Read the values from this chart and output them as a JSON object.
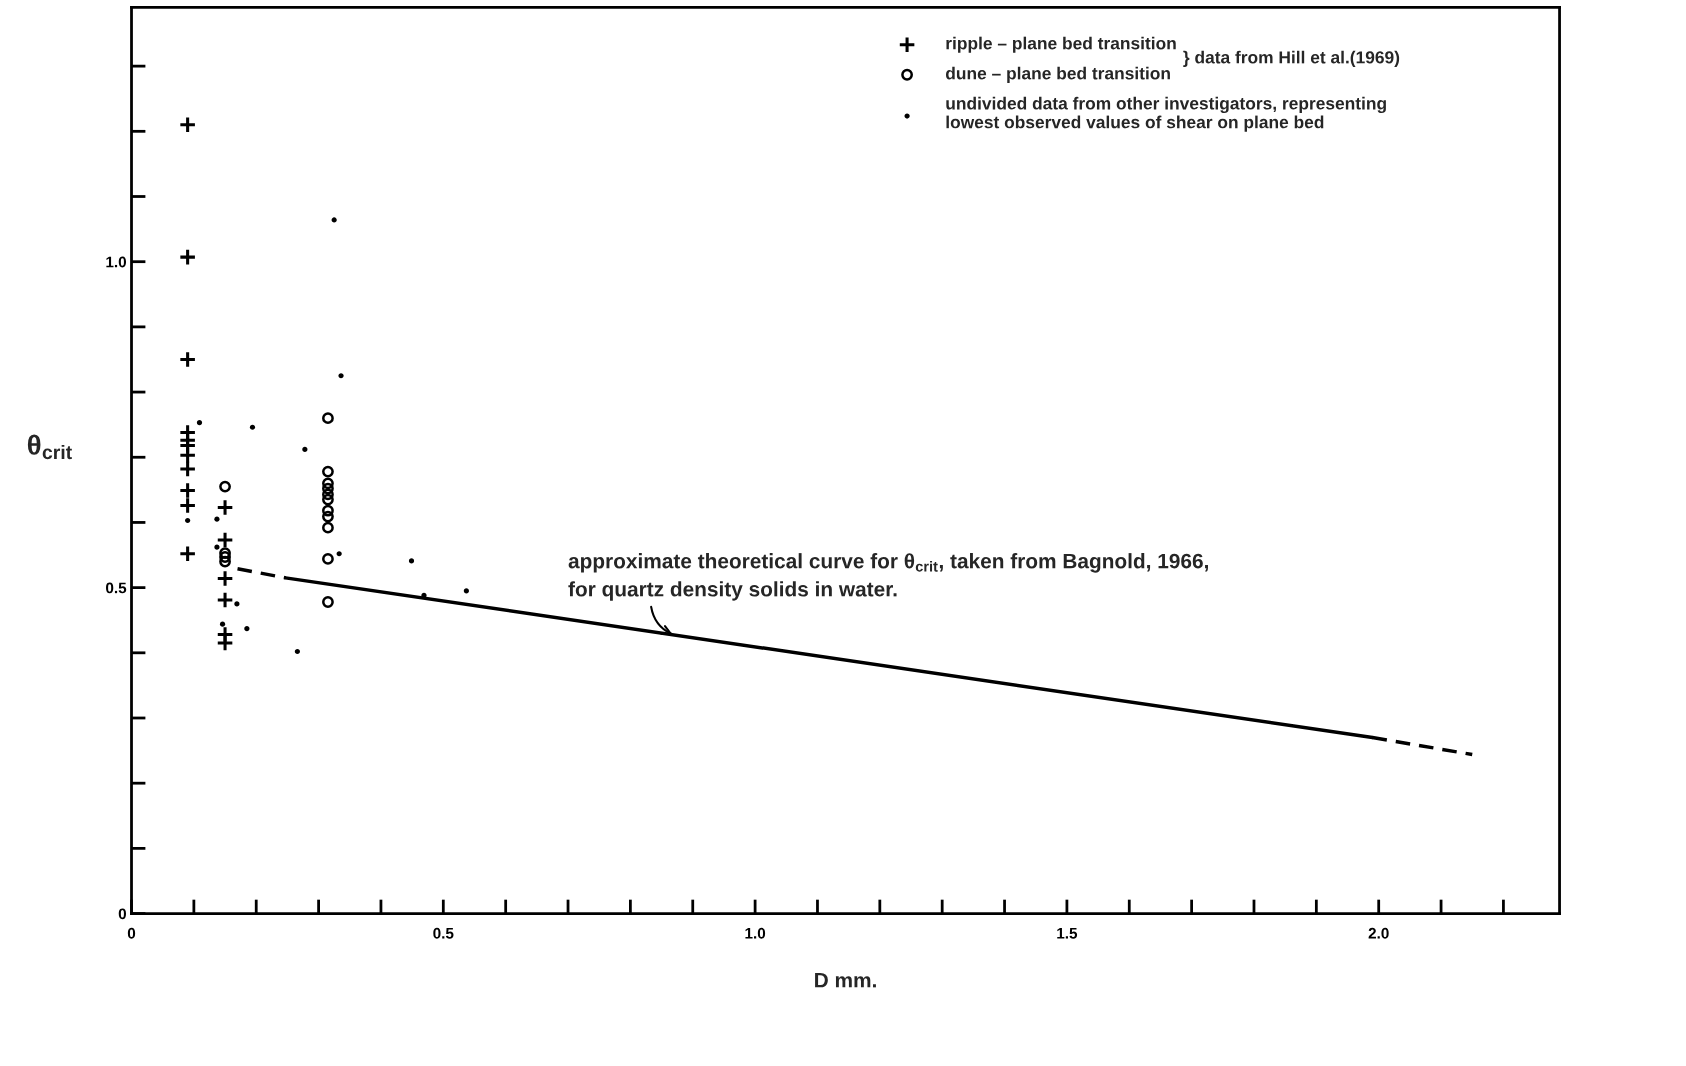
{
  "chart_data": {
    "type": "scatter",
    "xlabel": "D mm.",
    "ylabel": "θ$_{crit}$",
    "xlim": [
      0,
      2.29
    ],
    "ylim": [
      0,
      1.39
    ],
    "xticks": [
      0,
      {
        "value": 0.1,
        "label": null
      },
      {
        "value": 0.2,
        "label": null
      },
      {
        "value": 0.3,
        "label": null
      },
      {
        "value": 0.4,
        "label": null
      },
      0.5,
      {
        "value": 0.6,
        "label": null
      },
      {
        "value": 0.7,
        "label": null
      },
      {
        "value": 0.8,
        "label": null
      },
      {
        "value": 0.9,
        "label": null
      },
      {
        "value": 1.0,
        "label": "1.0"
      },
      {
        "value": 1.1,
        "label": null
      },
      {
        "value": 1.2,
        "label": null
      },
      {
        "value": 1.3,
        "label": null
      },
      {
        "value": 1.4,
        "label": null
      },
      1.5,
      {
        "value": 1.6,
        "label": null
      },
      {
        "value": 1.7,
        "label": null
      },
      {
        "value": 1.8,
        "label": null
      },
      {
        "value": 1.9,
        "label": null
      },
      {
        "value": 2.0,
        "label": "2.0"
      },
      {
        "value": 2.1,
        "label": null
      },
      {
        "value": 2.2,
        "label": null
      }
    ],
    "yticks": [
      0,
      {
        "value": 0.1,
        "label": null
      },
      {
        "value": 0.2,
        "label": null
      },
      {
        "value": 0.3,
        "label": null
      },
      {
        "value": 0.4,
        "label": null
      },
      0.5,
      {
        "value": 0.6,
        "label": null
      },
      {
        "value": 0.7,
        "label": null
      },
      {
        "value": 0.8,
        "label": null
      },
      {
        "value": 0.9,
        "label": null
      },
      {
        "value": 1.0,
        "label": "1.0"
      },
      {
        "value": 1.1,
        "label": null
      },
      {
        "value": 1.2,
        "label": null
      },
      {
        "value": 1.3,
        "label": null
      }
    ],
    "grid": false,
    "legend": "top right",
    "series": [
      {
        "name": "ripple – plane bed transition",
        "color": "#000000",
        "marker": "cross",
        "x": [
          0.09,
          0.09,
          0.09,
          0.09,
          0.09,
          0.09,
          0.09,
          0.09,
          0.09,
          0.09,
          0.09,
          0.15,
          0.15,
          0.15,
          0.15,
          0.15,
          0.15
        ],
        "values": [
          1.21,
          1.007,
          0.85,
          0.738,
          0.726,
          0.718,
          0.703,
          0.682,
          0.649,
          0.626,
          0.552,
          0.623,
          0.573,
          0.514,
          0.481,
          0.428,
          0.415
        ]
      },
      {
        "name": "dune – plane bed transition",
        "color": "#000000",
        "marker": "circle",
        "x": [
          0.15,
          0.15,
          0.15,
          0.15,
          0.315,
          0.315,
          0.315,
          0.315,
          0.315,
          0.315,
          0.315,
          0.315,
          0.315,
          0.315,
          0.315
        ],
        "values": [
          0.655,
          0.553,
          0.547,
          0.54,
          0.76,
          0.678,
          0.66,
          0.652,
          0.643,
          0.635,
          0.618,
          0.609,
          0.592,
          0.544,
          0.478
        ]
      },
      {
        "name": "undivided data from other investigators, representing\nlowest observed values of shear on plane bed",
        "color": "#000000",
        "marker": "dot",
        "x": [
          0.109,
          0.09,
          0.137,
          0.137,
          0.146,
          0.169,
          0.185,
          0.194,
          0.266,
          0.278,
          0.325,
          0.336,
          0.333,
          0.449,
          0.469,
          0.537
        ],
        "values": [
          0.753,
          0.603,
          0.605,
          0.562,
          0.444,
          0.475,
          0.437,
          0.746,
          0.402,
          0.712,
          1.064,
          0.825,
          0.552,
          0.541,
          0.488,
          0.495
        ]
      },
      {
        "type": "line",
        "color": "#000000",
        "line_style": "dashed",
        "x": [
          0.17,
          0.247
        ],
        "values": [
          0.529,
          0.515
        ]
      },
      {
        "type": "line",
        "color": "#000000",
        "line_style": "solid",
        "x": [
          0.247,
          1.99
        ],
        "values": [
          0.515,
          0.27
        ]
      },
      {
        "type": "line",
        "color": "#000000",
        "line_style": "dashed",
        "x": [
          1.99,
          2.15
        ],
        "values": [
          0.27,
          0.244
        ]
      }
    ],
    "annotations": [
      "approximate theoretical curve for θ$_{crit}$, taken from Bagnold, 1966,",
      {
        "text": "for quartz density solids in water.",
        "x": 0.868,
        "y": 0.428
      },
      "} data from Hill et al.(1969)"
    ]
  }
}
